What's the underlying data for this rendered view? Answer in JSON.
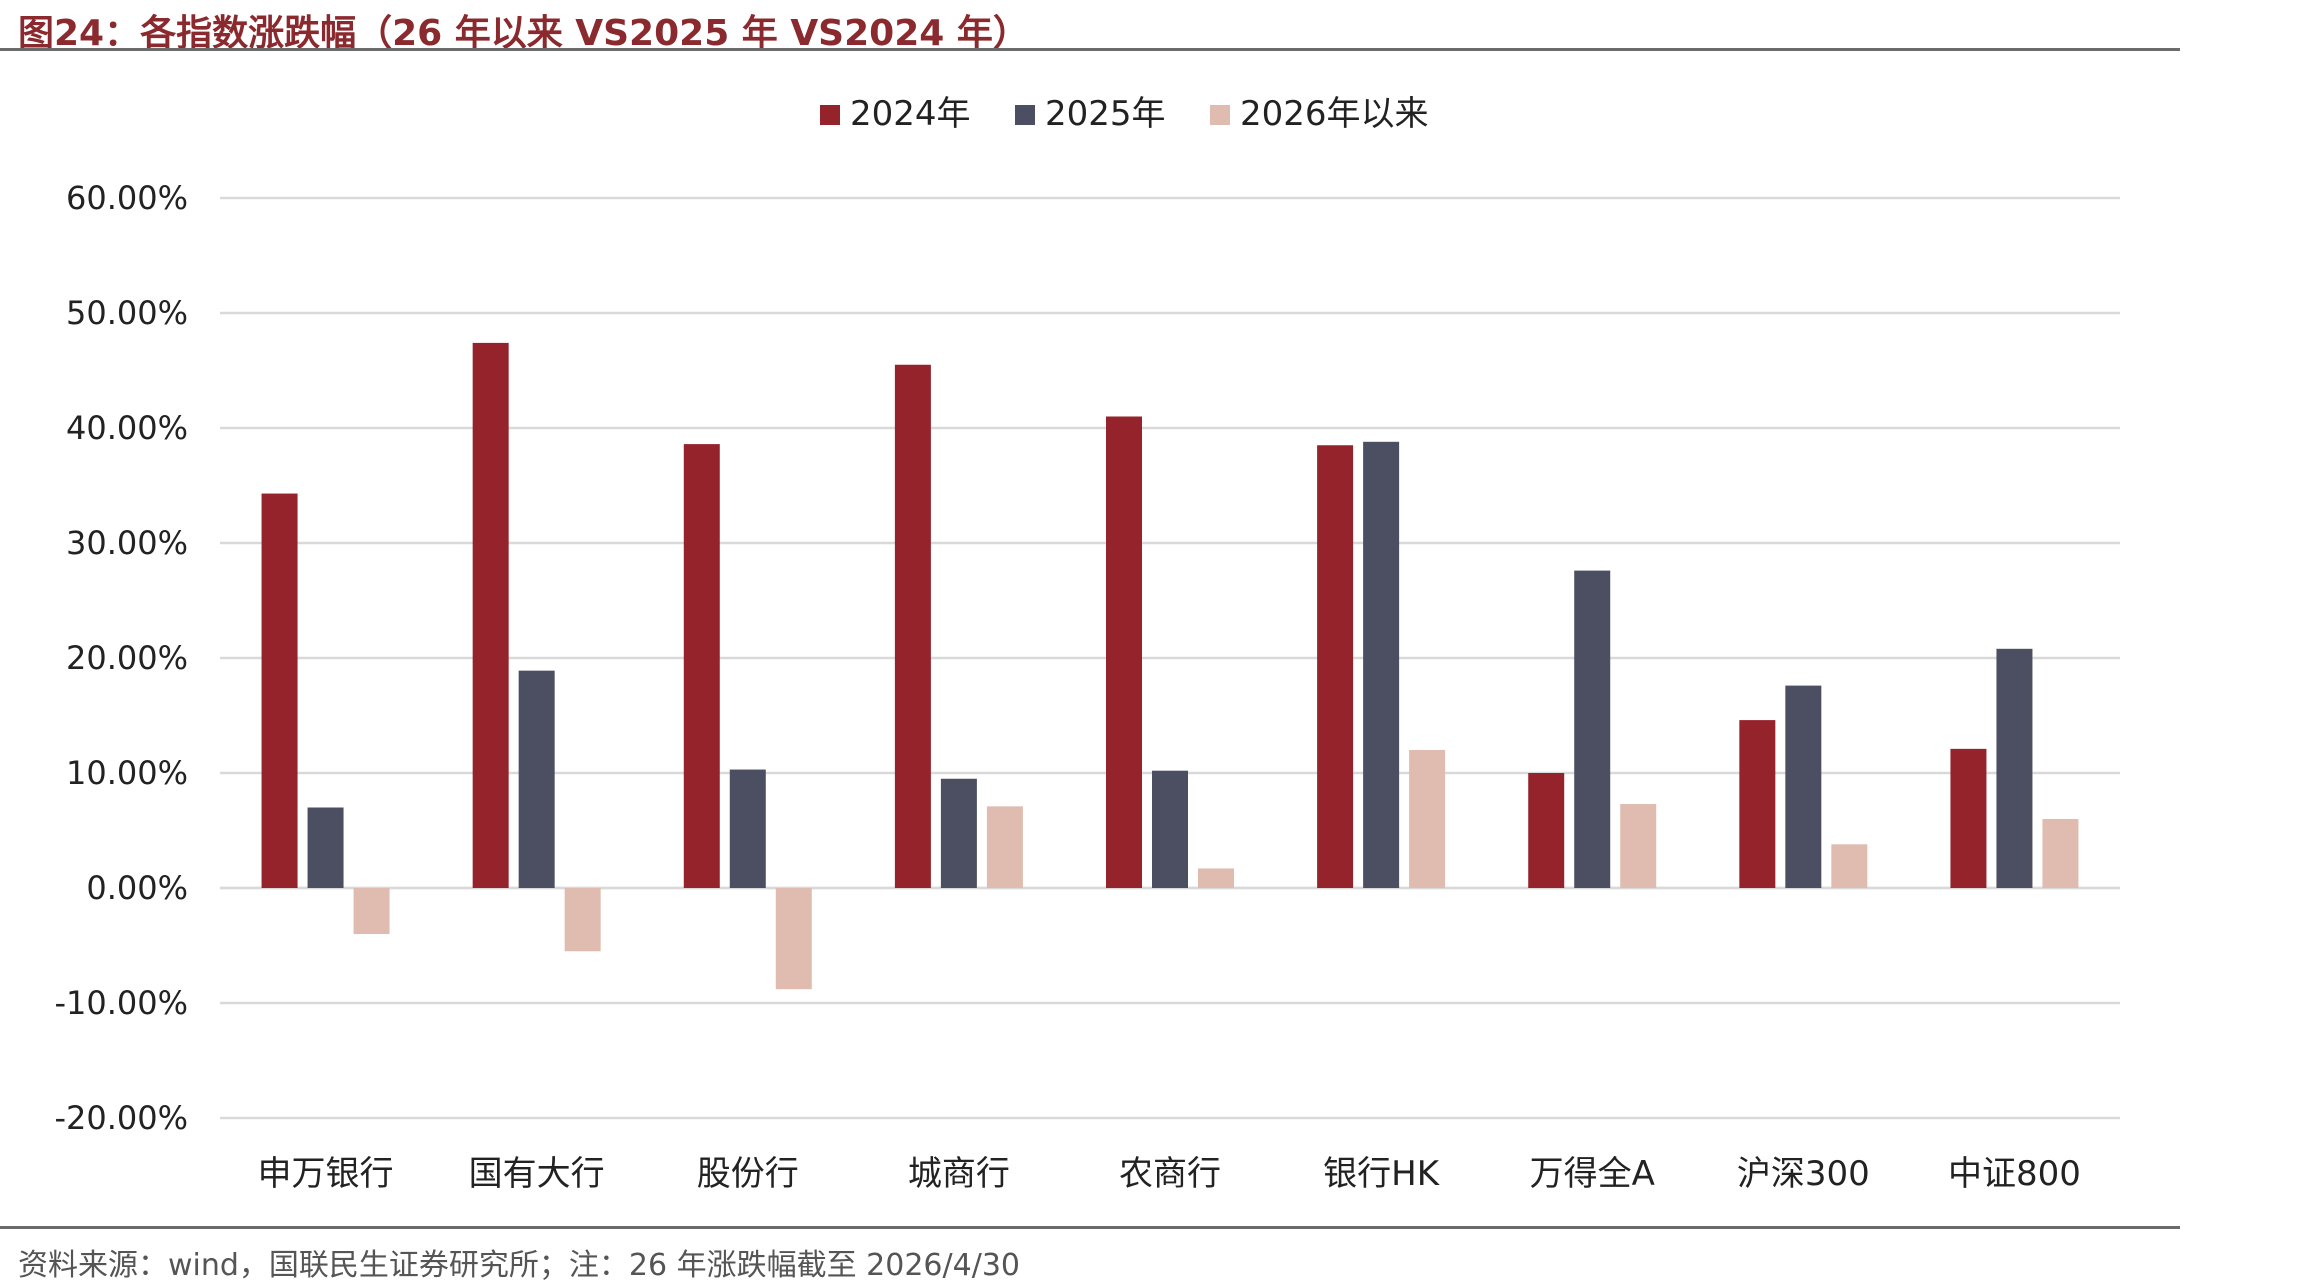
{
  "figure": {
    "title": "图24：各指数涨跌幅（26 年以来 VS2025 年 VS2024 年）",
    "source": "资料来源：wind，国联民生证券研究所；注：26 年涨跌幅截至 2026/4/30"
  },
  "chart_data": {
    "type": "bar",
    "title": "",
    "xlabel": "",
    "ylabel": "",
    "categories": [
      "申万银行",
      "国有大行",
      "股份行",
      "城商行",
      "农商行",
      "银行HK",
      "万得全A",
      "沪深300",
      "中证800"
    ],
    "series": [
      {
        "name": "2024年",
        "color": "#95232b",
        "values": [
          34.3,
          47.4,
          38.6,
          45.5,
          41.0,
          38.5,
          10.0,
          14.6,
          12.1
        ]
      },
      {
        "name": "2025年",
        "color": "#4b4f61",
        "values": [
          7.0,
          18.9,
          10.3,
          9.5,
          10.2,
          38.8,
          27.6,
          17.6,
          20.8
        ]
      },
      {
        "name": "2026年以来",
        "color": "#dfbcaf",
        "values": [
          -4.0,
          -5.5,
          -8.8,
          7.1,
          1.7,
          12.0,
          7.3,
          3.8,
          6.0
        ]
      }
    ],
    "ylim": [
      -20,
      60
    ],
    "yticks": [
      -20,
      -10,
      0,
      10,
      20,
      30,
      40,
      50,
      60
    ],
    "ytick_labels": [
      "-20.00%",
      "-10.00%",
      "0.00%",
      "10.00%",
      "20.00%",
      "30.00%",
      "40.00%",
      "50.00%",
      "60.00%"
    ],
    "grid": true,
    "legend_position": "top-center"
  }
}
